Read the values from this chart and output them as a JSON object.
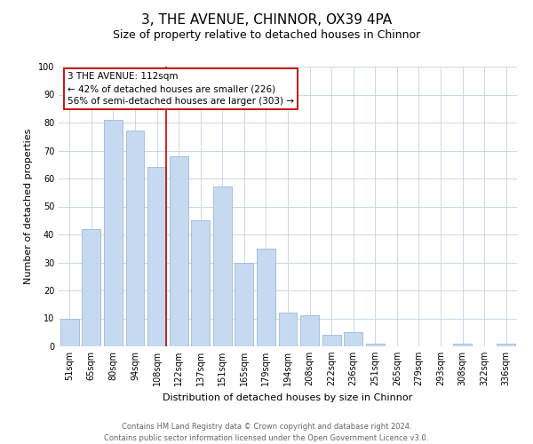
{
  "title": "3, THE AVENUE, CHINNOR, OX39 4PA",
  "subtitle": "Size of property relative to detached houses in Chinnor",
  "xlabel": "Distribution of detached houses by size in Chinnor",
  "ylabel": "Number of detached properties",
  "bar_color": "#c5d9f0",
  "bar_edge_color": "#a0b8d8",
  "categories": [
    "51sqm",
    "65sqm",
    "80sqm",
    "94sqm",
    "108sqm",
    "122sqm",
    "137sqm",
    "151sqm",
    "165sqm",
    "179sqm",
    "194sqm",
    "208sqm",
    "222sqm",
    "236sqm",
    "251sqm",
    "265sqm",
    "279sqm",
    "293sqm",
    "308sqm",
    "322sqm",
    "336sqm"
  ],
  "values": [
    10,
    42,
    81,
    77,
    64,
    68,
    45,
    57,
    30,
    35,
    12,
    11,
    4,
    5,
    1,
    0,
    0,
    0,
    1,
    0,
    1
  ],
  "ylim": [
    0,
    100
  ],
  "yticks": [
    0,
    10,
    20,
    30,
    40,
    50,
    60,
    70,
    80,
    90,
    100
  ],
  "annotation_title": "3 THE AVENUE: 112sqm",
  "annotation_line1": "← 42% of detached houses are smaller (226)",
  "annotation_line2": "56% of semi-detached houses are larger (303) →",
  "annotation_box_color": "#ffffff",
  "annotation_box_edge": "#cc0000",
  "footer_line1": "Contains HM Land Registry data © Crown copyright and database right 2024.",
  "footer_line2": "Contains public sector information licensed under the Open Government Licence v3.0.",
  "bg_color": "#ffffff",
  "grid_color": "#c8d8e8",
  "title_fontsize": 11,
  "subtitle_fontsize": 9,
  "tick_fontsize": 7,
  "ylabel_fontsize": 8,
  "xlabel_fontsize": 8,
  "footer_fontsize": 6,
  "annotation_fontsize": 7.5
}
